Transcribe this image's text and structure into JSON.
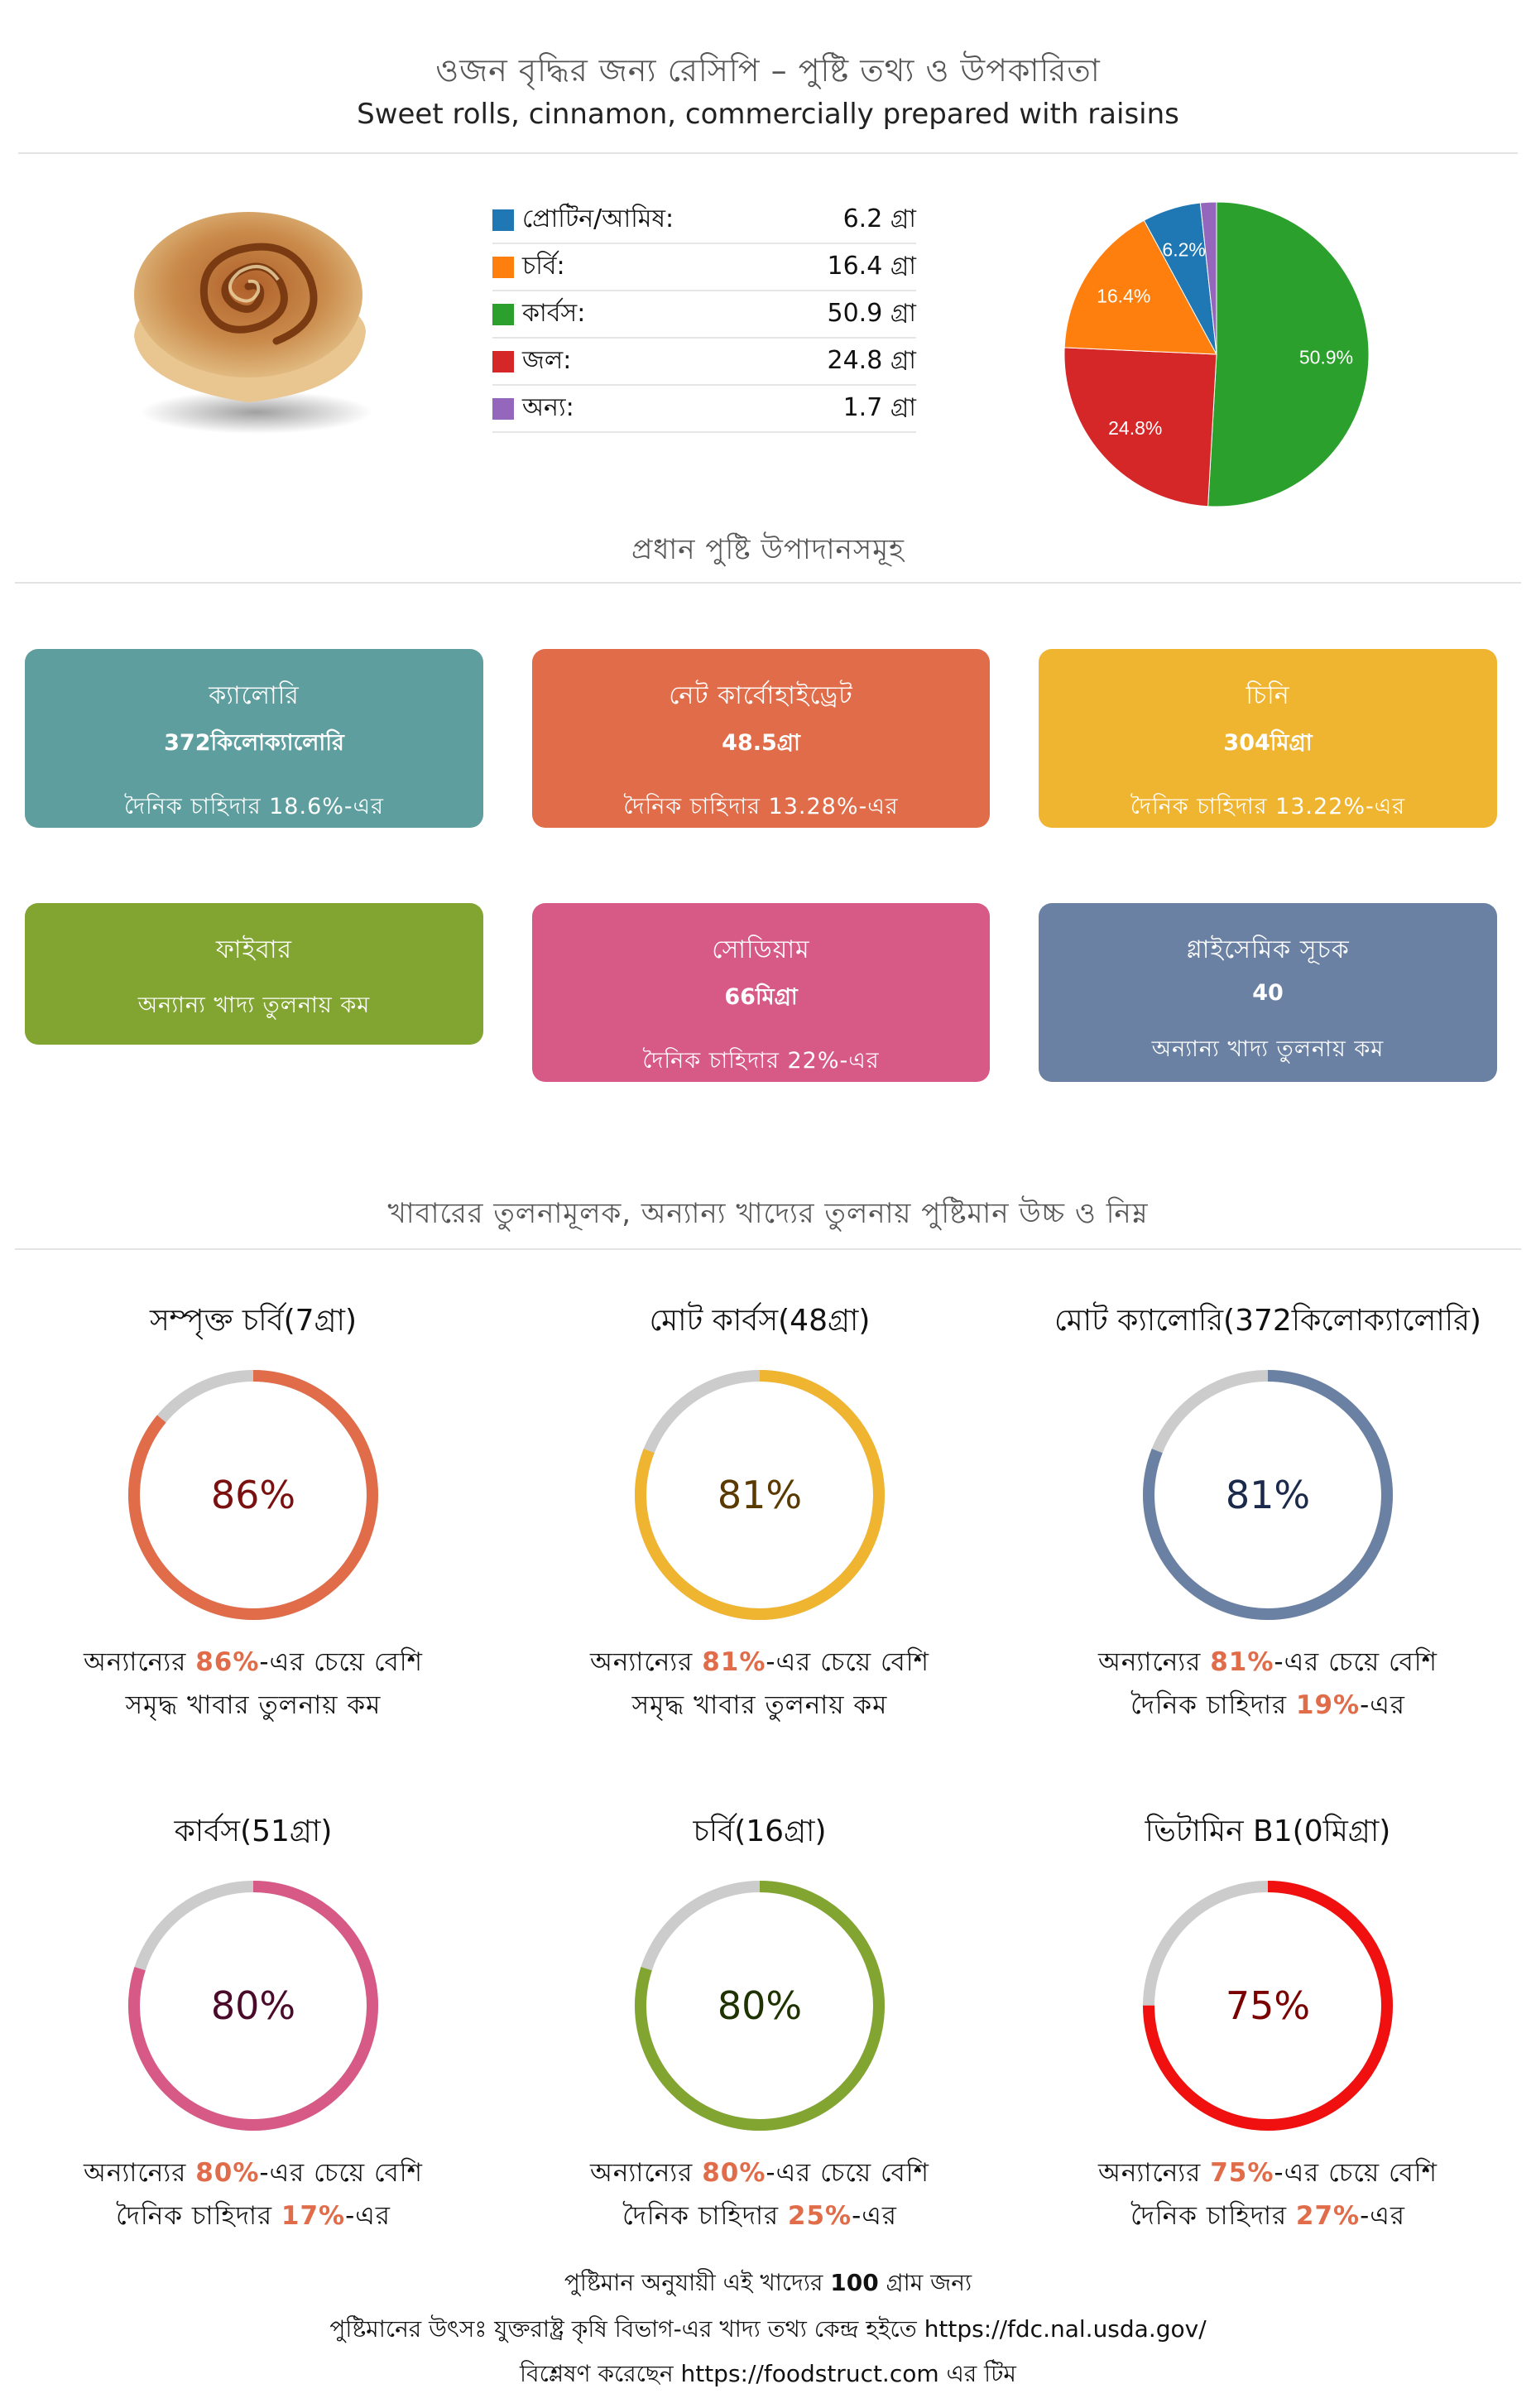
{
  "header": {
    "title": "ওজন বৃদ্ধির জন্য রেসিপি – পুষ্টি তথ্য ও উপকারিতা",
    "subtitle": "Sweet rolls, cinnamon, commercially prepared with raisins"
  },
  "macros": {
    "items": [
      {
        "label": "প্রোটিন/আমিষ:",
        "value": "6.2 গ্রা",
        "color": "#1f77b4"
      },
      {
        "label": "চর্বি:",
        "value": "16.4 গ্রা",
        "color": "#ff7f0e"
      },
      {
        "label": "কার্বস:",
        "value": "50.9 গ্রা",
        "color": "#2ca02c"
      },
      {
        "label": "জল:",
        "value": "24.8 গ্রা",
        "color": "#d62728"
      },
      {
        "label": "অন্য:",
        "value": "1.7 গ্রা",
        "color": "#9467bd"
      }
    ],
    "pie_labels": [
      "6.2%",
      "16.4%",
      "50.9%",
      "24.8%"
    ]
  },
  "chart_data": {
    "type": "pie",
    "categories": [
      "প্রোটিন/আমিষ",
      "চর্বি",
      "কার্বস",
      "জল",
      "অন্য"
    ],
    "values": [
      6.2,
      16.4,
      50.9,
      24.8,
      1.7
    ],
    "colors": [
      "#1f77b4",
      "#ff7f0e",
      "#2ca02c",
      "#d62728",
      "#9467bd"
    ]
  },
  "section1": {
    "title": "প্রধান পুষ্টি উপাদানসমূহ"
  },
  "cards": [
    {
      "name": "ক্যালোরি",
      "value": "372কিলোক্যালোরি",
      "note": "দৈনিক চাহিদার 18.6%-এর",
      "color": "#5e9e9e"
    },
    {
      "name": "নেট কার্বোহাইড্রেট",
      "value": "48.5গ্রা",
      "note": "দৈনিক চাহিদার 13.28%-এর",
      "color": "#e06c4a"
    },
    {
      "name": "চিনি",
      "value": "304মিগ্রা",
      "note": "দৈনিক চাহিদার 13.22%-এর",
      "color": "#f0b530"
    },
    {
      "name": "ফাইবার",
      "value": "",
      "note": "অন্যান্য খাদ্য তুলনায় কম",
      "color": "#82a532"
    },
    {
      "name": "সোডিয়াম",
      "value": "66মিগ্রা",
      "note": "দৈনিক চাহিদার 22%-এর",
      "color": "#d75985"
    },
    {
      "name": "গ্লাইসেমিক সূচক",
      "value": "40",
      "note": "অন্যান্য খাদ্য তুলনায় কম",
      "color": "#6b81a3"
    }
  ],
  "section2": {
    "title": "খাবারের তুলনামূলক, অন্যান্য খাদ্যের তুলনায় পুষ্টিমান উচ্চ ও নিম্ন"
  },
  "gauges": [
    {
      "title": "সম্পৃক্ত চর্বি(7গ্রা)",
      "percent": "86%",
      "value": 86,
      "color": "#e06c4a",
      "text_color": "#7a1010",
      "cap_a": "অন্যান্যের ",
      "cap_hl": "86%",
      "cap_b": "-এর চেয়ে বেশি",
      "cap_line2_a": "সমৃদ্ধ খাবার তুলনায় কম",
      "cap_line2_hl": "",
      "cap_line2_b": ""
    },
    {
      "title": "মোট কার্বস(48গ্রা)",
      "percent": "81%",
      "value": 81,
      "color": "#f0b530",
      "text_color": "#5a3a00",
      "cap_a": "অন্যান্যের ",
      "cap_hl": "81%",
      "cap_b": "-এর চেয়ে বেশি",
      "cap_line2_a": "সমৃদ্ধ খাবার তুলনায় কম",
      "cap_line2_hl": "",
      "cap_line2_b": ""
    },
    {
      "title": "মোট ক্যালোরি(372কিলোক্যালোরি)",
      "percent": "81%",
      "value": 81,
      "color": "#6b81a3",
      "text_color": "#1b2a4a",
      "cap_a": "অন্যান্যের ",
      "cap_hl": "81%",
      "cap_b": "-এর চেয়ে বেশি",
      "cap_line2_a": "দৈনিক চাহিদার ",
      "cap_line2_hl": "19%",
      "cap_line2_b": "-এর"
    },
    {
      "title": "কার্বস(51গ্রা)",
      "percent": "80%",
      "value": 80,
      "color": "#d75985",
      "text_color": "#4a0a2a",
      "cap_a": "অন্যান্যের ",
      "cap_hl": "80%",
      "cap_b": "-এর চেয়ে বেশি",
      "cap_line2_a": "দৈনিক চাহিদার ",
      "cap_line2_hl": "17%",
      "cap_line2_b": "-এর"
    },
    {
      "title": "চর্বি(16গ্রা)",
      "percent": "80%",
      "value": 80,
      "color": "#82a532",
      "text_color": "#1f3300",
      "cap_a": "অন্যান্যের ",
      "cap_hl": "80%",
      "cap_b": "-এর চেয়ে বেশি",
      "cap_line2_a": "দৈনিক চাহিদার ",
      "cap_line2_hl": "25%",
      "cap_line2_b": "-এর"
    },
    {
      "title": "ভিটামিন B1(0মিগ্রা)",
      "percent": "75%",
      "value": 75,
      "color": "#f01010",
      "text_color": "#7a0000",
      "cap_a": "অন্যান্যের ",
      "cap_hl": "75%",
      "cap_b": "-এর চেয়ে বেশি",
      "cap_line2_a": "দৈনিক চাহিদার ",
      "cap_line2_hl": "27%",
      "cap_line2_b": "-এর"
    }
  ],
  "footer": {
    "line1_a": "পুষ্টিমান অনুযায়ী এই খাদ্যের ",
    "line1_bold": "100",
    "line1_b": " গ্রাম জন্য",
    "line2": "পুষ্টিমানের উৎসঃ যুক্তরাষ্ট্র কৃষি বিভাগ-এর খাদ্য তথ্য কেন্দ্র হইতে https://fdc.nal.usda.gov/",
    "line3": "বিশ্লেষণ করেছেন https://foodstruct.com এর টিম"
  }
}
